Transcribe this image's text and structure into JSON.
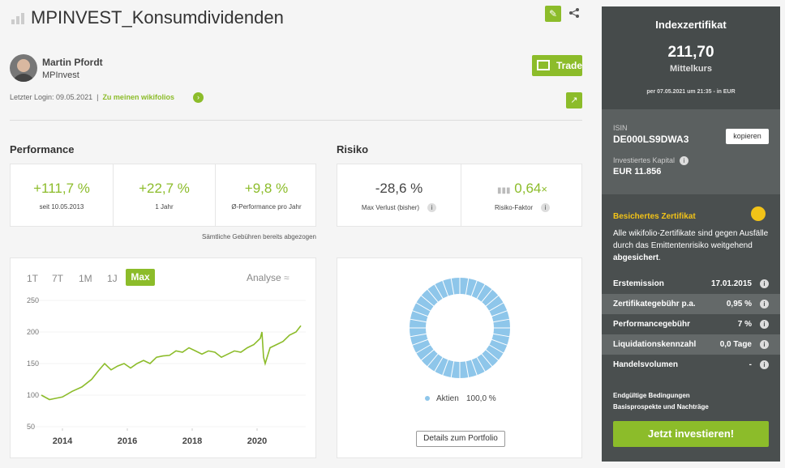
{
  "header": {
    "title": "MPINVEST_Konsumdividenden"
  },
  "trader": {
    "name": "Martin Pfordt",
    "handle": "MPInvest",
    "last_login": "Letzter Login: 09.05.2021",
    "link": "Zu meinen wikifolios",
    "trade": "Trade"
  },
  "performance": {
    "title": "Performance",
    "items": [
      {
        "value": "+111,7 %",
        "label": "seit 10.05.2013"
      },
      {
        "value": "+22,7 %",
        "label": "1 Jahr"
      },
      {
        "value": "+9,8 %",
        "label": "Ø-Performance pro Jahr"
      }
    ],
    "note": "Sämtliche Gebühren bereits abgezogen"
  },
  "risk": {
    "title": "Risiko",
    "loss": {
      "value": "-28,6 %",
      "label": "Max Verlust (bisher)"
    },
    "factor": {
      "value": "0,64",
      "unit": "×",
      "label": "Risiko-Faktor"
    }
  },
  "range_buttons": [
    "1T",
    "7T",
    "1M",
    "1J",
    "Max"
  ],
  "analyse": "Analyse",
  "chart_data": [
    {
      "type": "line",
      "color": "#8cbc2a",
      "x": [
        2013.35,
        2013.6,
        2013.8,
        2014.0,
        2014.3,
        2014.6,
        2014.9,
        2015.1,
        2015.3,
        2015.5,
        2015.7,
        2015.9,
        2016.1,
        2016.3,
        2016.5,
        2016.7,
        2016.9,
        2017.1,
        2017.3,
        2017.5,
        2017.7,
        2017.9,
        2018.1,
        2018.3,
        2018.5,
        2018.7,
        2018.9,
        2019.1,
        2019.3,
        2019.5,
        2019.7,
        2019.9,
        2020.1,
        2020.15,
        2020.2,
        2020.25,
        2020.4,
        2020.6,
        2020.8,
        2021.0,
        2021.2,
        2021.35
      ],
      "values": [
        100,
        93,
        95,
        97,
        106,
        113,
        125,
        138,
        150,
        140,
        146,
        150,
        143,
        150,
        155,
        150,
        160,
        162,
        163,
        170,
        168,
        175,
        170,
        165,
        170,
        168,
        160,
        165,
        170,
        168,
        175,
        180,
        190,
        200,
        160,
        150,
        175,
        180,
        185,
        195,
        200,
        210
      ],
      "xlim": [
        2013,
        2021.5
      ],
      "xticks": [
        2014,
        2016,
        2018,
        2020
      ],
      "ylim": [
        50,
        250
      ],
      "yticks": [
        50,
        100,
        150,
        200,
        250
      ]
    },
    {
      "type": "pie",
      "categories": [
        "Aktien"
      ],
      "values": [
        100
      ],
      "value_labels": [
        "100,0 %"
      ],
      "colors": [
        "#8ec6ea"
      ]
    }
  ],
  "portfolio_button": "Details zum Portfolio",
  "certificate": {
    "title": "Indexzertifikat",
    "price": "211,70",
    "price_label": "Mittelkurs",
    "as_of": "per 07.05.2021 um 21:35 - in EUR",
    "isin_label": "ISIN",
    "isin": "DE000LS9DWA3",
    "copy": "kopieren",
    "capital_label": "Investiertes Kapital",
    "capital": "EUR 11.856",
    "secured_title": "Besichertes Zertifikat",
    "secured_text": "Alle wikifolio-Zertifikate sind gegen Ausfälle durch das Emittentenrisiko weitgehend ",
    "secured_bold": "abgesichert",
    "secured_end": ".",
    "facts": [
      [
        "Erstemission",
        "17.01.2015"
      ],
      [
        "Zertifikategebühr p.a.",
        "0,95 %"
      ],
      [
        "Performancegebühr",
        "7 %"
      ],
      [
        "Liquidationskennzahl",
        "0,0 Tage"
      ],
      [
        "Handelsvolumen",
        "-"
      ]
    ],
    "links": [
      "Endgültige Bedingungen",
      "Basisprospekte und Nachträge"
    ],
    "cta": "Jetzt investieren!"
  }
}
